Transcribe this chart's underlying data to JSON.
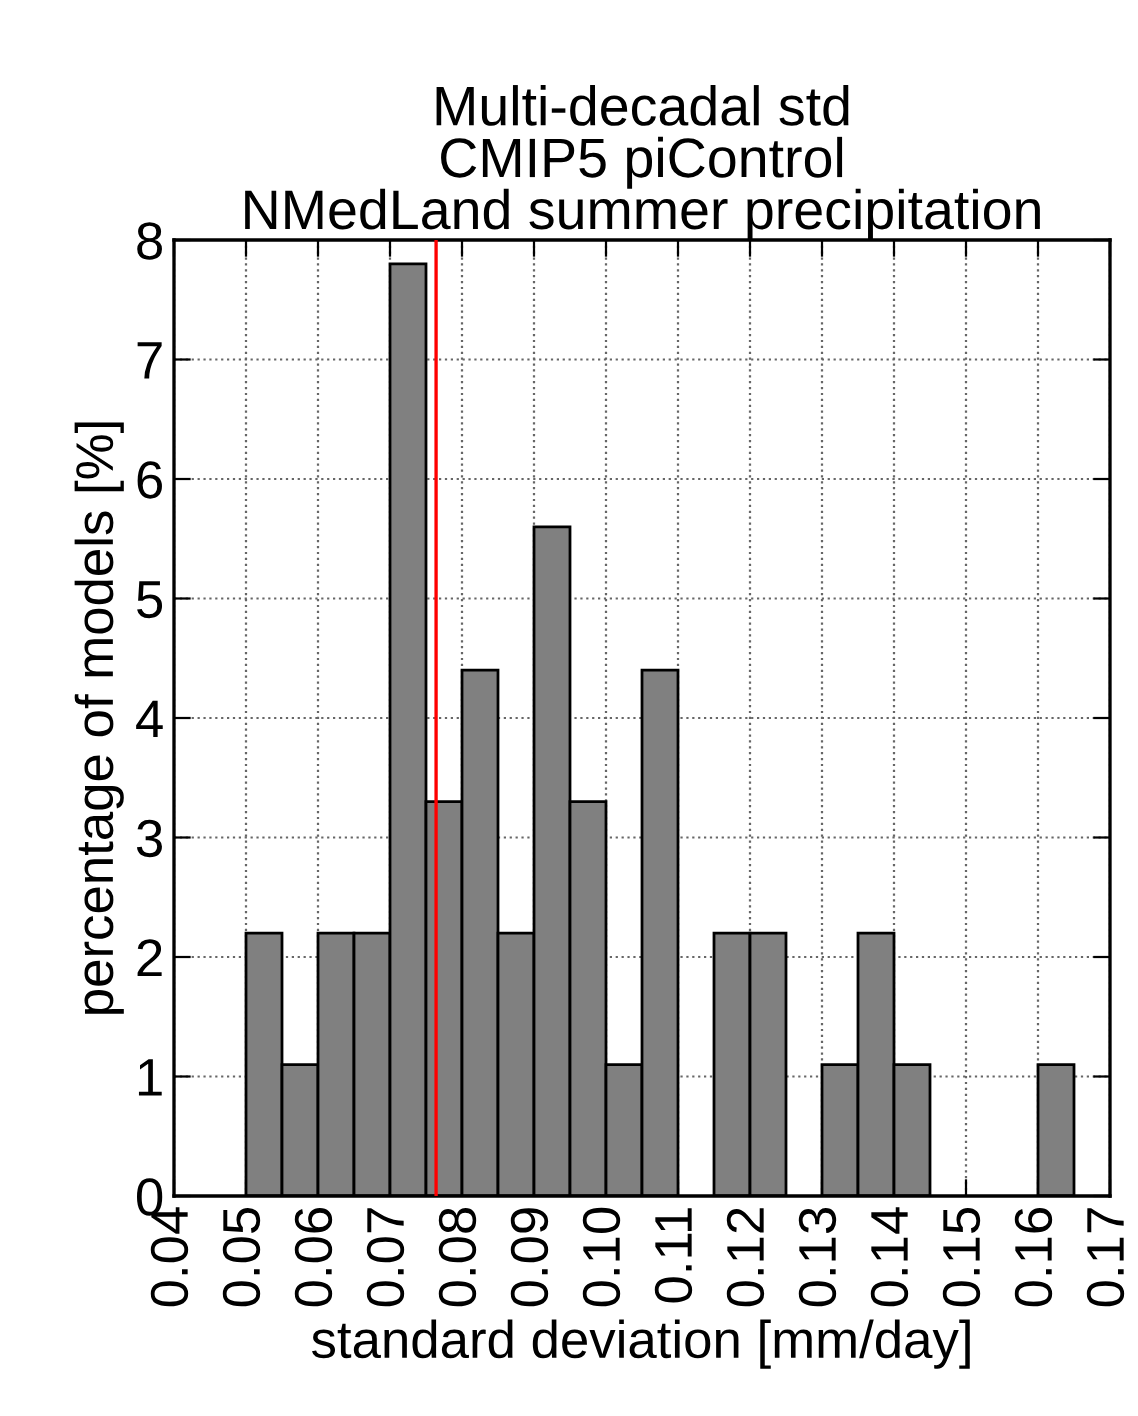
{
  "chart_data": {
    "type": "histogram",
    "title": "Multi-decadal std\nCMIP5 piControl\nNMedLand summer precipitation",
    "xlabel": "standard deviation [mm/day]",
    "ylabel": "percentage of models [%]",
    "bins": [
      0.05,
      0.055,
      0.06,
      0.065,
      0.07,
      0.075,
      0.08,
      0.085,
      0.09,
      0.095,
      0.1,
      0.105,
      0.11,
      0.115,
      0.12,
      0.125,
      0.13,
      0.135,
      0.14,
      0.145,
      0.15,
      0.155,
      0.16,
      0.165
    ],
    "values": [
      2.2,
      1.1,
      2.2,
      2.2,
      7.8,
      3.3,
      4.4,
      2.2,
      5.6,
      3.3,
      1.1,
      4.4,
      0,
      2.2,
      2.2,
      0,
      1.1,
      2.2,
      1.1,
      0,
      0,
      0,
      1.1
    ],
    "color": "#808080",
    "xlim": [
      0.04,
      0.17
    ],
    "xticks": [
      0.04,
      0.05,
      0.06,
      0.07,
      0.08,
      0.09,
      {
        "value": 0.1,
        "label": "0.10"
      },
      0.11,
      0.12,
      0.13,
      0.14,
      0.15,
      0.16,
      0.17
    ],
    "ylim": [
      0,
      8
    ],
    "yticks": [
      0,
      1,
      2,
      3,
      4,
      5,
      6,
      7,
      8
    ],
    "ref_lines": [
      {
        "axis": "x",
        "value": 0.0764,
        "color": "#ff0000"
      }
    ],
    "grid": true
  }
}
